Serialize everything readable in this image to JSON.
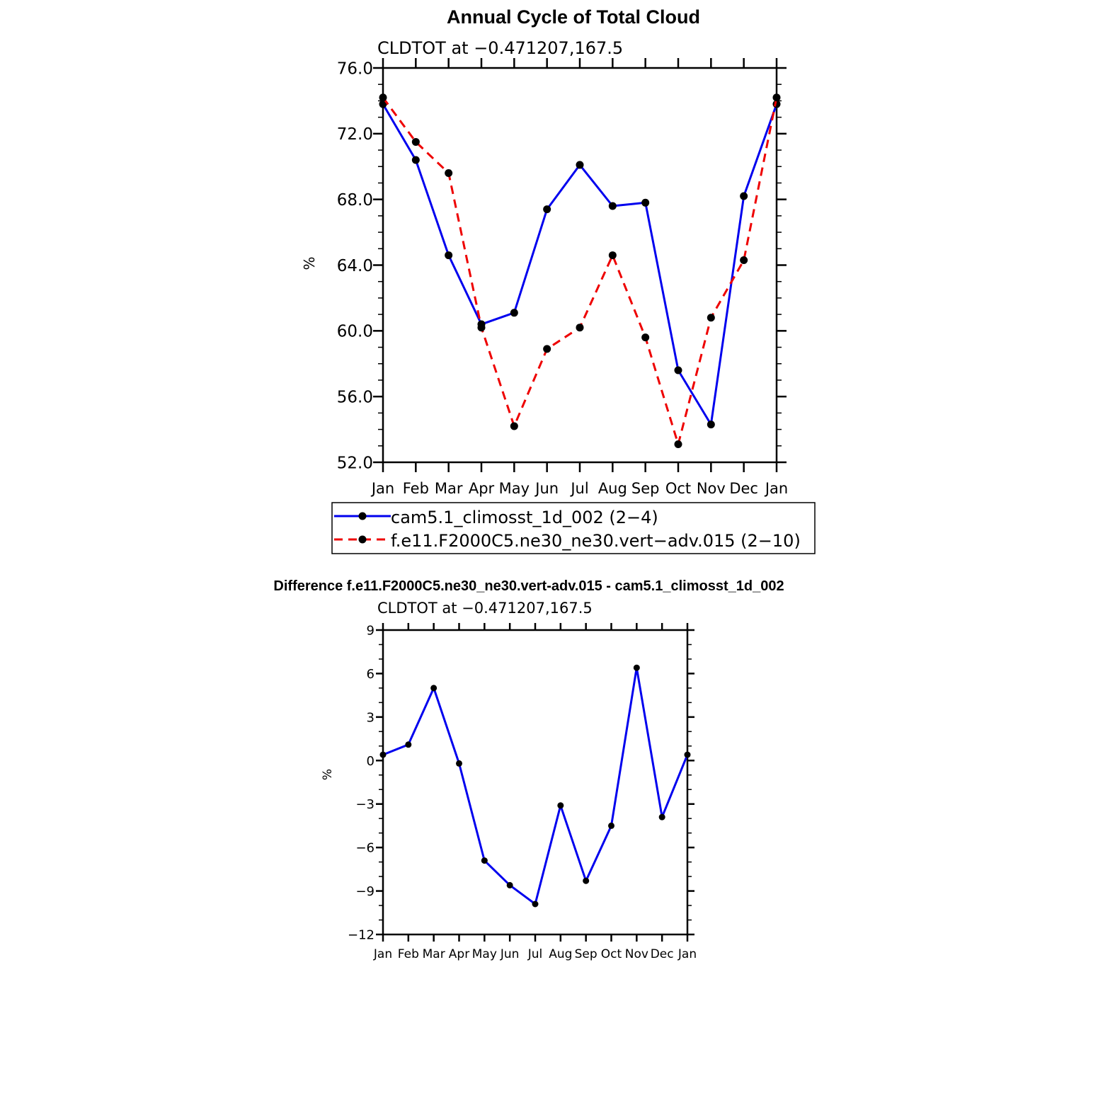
{
  "chart_data": [
    {
      "type": "line",
      "title": "Annual Cycle of Total Cloud",
      "subtitle": "CLDTOT at −0.471207,167.5",
      "xlabel": "",
      "ylabel": "%",
      "categories": [
        "Jan",
        "Feb",
        "Mar",
        "Apr",
        "May",
        "Jun",
        "Jul",
        "Aug",
        "Sep",
        "Oct",
        "Nov",
        "Dec",
        "Jan"
      ],
      "ylim": [
        52,
        76
      ],
      "ytick_labels": [
        "52.0",
        "56.0",
        "60.0",
        "64.0",
        "68.0",
        "72.0",
        "76.0"
      ],
      "series": [
        {
          "name": "cam5.1_climosst_1d_002 (2−4)",
          "color": "#0000ee",
          "dash": "solid",
          "values": [
            73.8,
            70.4,
            64.6,
            60.4,
            61.1,
            67.4,
            70.1,
            67.6,
            67.8,
            57.6,
            54.3,
            68.2,
            73.8
          ]
        },
        {
          "name": "f.e11.F2000C5.ne30_ne30.vert−adv.015 (2−10)",
          "color": "#ee0000",
          "dash": "dashed",
          "values": [
            74.2,
            71.5,
            69.6,
            60.2,
            54.2,
            58.9,
            60.2,
            64.6,
            59.6,
            53.1,
            60.8,
            64.3,
            74.2
          ]
        }
      ],
      "legend_position": "below"
    },
    {
      "type": "line",
      "title": "Difference f.e11.F2000C5.ne30_ne30.vert-adv.015 - cam5.1_climosst_1d_002",
      "subtitle": "CLDTOT at −0.471207,167.5",
      "xlabel": "",
      "ylabel": "%",
      "categories": [
        "Jan",
        "Feb",
        "Mar",
        "Apr",
        "May",
        "Jun",
        "Jul",
        "Aug",
        "Sep",
        "Oct",
        "Nov",
        "Dec",
        "Jan"
      ],
      "ylim": [
        -12,
        9
      ],
      "ytick_labels": [
        "−12",
        "−9",
        "−6",
        "−3",
        "0",
        "3",
        "6",
        "9"
      ],
      "series": [
        {
          "name": "difference",
          "color": "#0000ee",
          "dash": "solid",
          "values": [
            0.4,
            1.1,
            5.0,
            -0.2,
            -6.9,
            -8.6,
            -9.9,
            -3.1,
            -8.3,
            -4.5,
            6.4,
            -3.9,
            0.4
          ]
        }
      ]
    }
  ]
}
